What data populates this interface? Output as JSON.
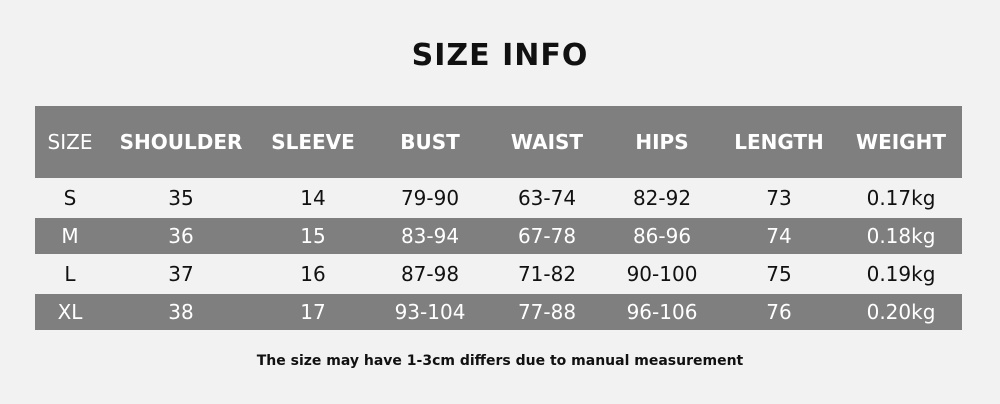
{
  "title": "SIZE INFO",
  "columns": [
    "SIZE",
    "SHOULDER",
    "SLEEVE",
    "BUST",
    "WAIST",
    "HIPS",
    "LENGTH",
    "WEIGHT"
  ],
  "rows": [
    [
      "S",
      "35",
      "14",
      "79-90",
      "63-74",
      "82-92",
      "73",
      "0.17kg"
    ],
    [
      "M",
      "36",
      "15",
      "83-94",
      "67-78",
      "86-96",
      "74",
      "0.18kg"
    ],
    [
      "L",
      "37",
      "16",
      "87-98",
      "71-82",
      "90-100",
      "75",
      "0.19kg"
    ],
    [
      "XL",
      "38",
      "17",
      "93-104",
      "77-88",
      "96-106",
      "76",
      "0.20kg"
    ]
  ],
  "note": "The size may have 1-3cm differs due to manual measurement",
  "colors": {
    "background": "#f2f2f2",
    "band": "#7f7f7f"
  }
}
